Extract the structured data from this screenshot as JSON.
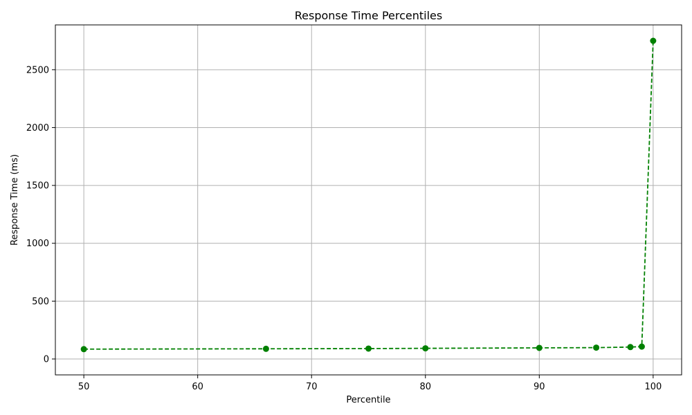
{
  "chart_data": {
    "type": "line",
    "title": "Response Time Percentiles",
    "xlabel": "Percentile",
    "ylabel": "Response Time (ms)",
    "x": [
      50,
      66,
      75,
      80,
      90,
      95,
      98,
      99,
      100
    ],
    "series": [
      {
        "values": [
          85,
          88,
          90,
          92,
          96,
          98,
          103,
          107,
          2750
        ],
        "color": "#008000",
        "line_style": "dashed",
        "marker": "circle"
      }
    ],
    "xlim": [
      47.5,
      102.5
    ],
    "ylim": [
      -137.5,
      2887.5
    ],
    "x_ticks": [
      50,
      60,
      70,
      80,
      90,
      100
    ],
    "y_ticks": [
      0,
      500,
      1000,
      1500,
      2000,
      2500
    ],
    "grid": true,
    "grid_color": "#b0b0b0",
    "axis_color": "#000000"
  }
}
